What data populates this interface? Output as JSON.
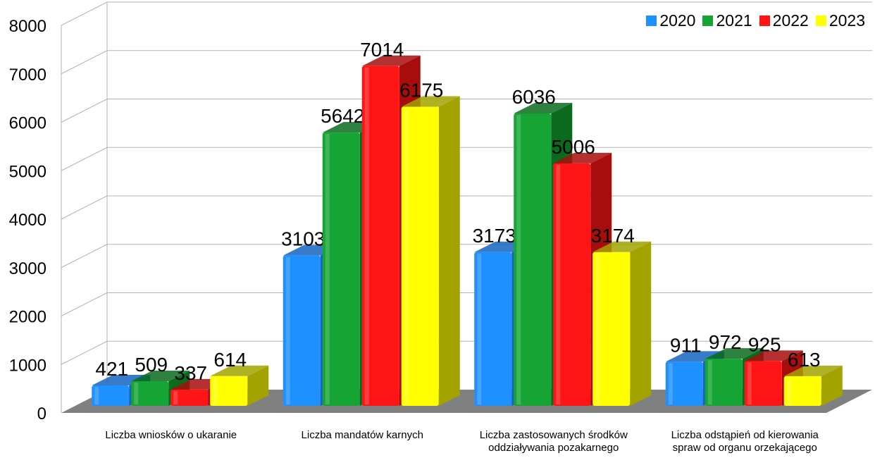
{
  "chart_data": {
    "type": "bar",
    "categories": [
      [
        "Liczba wniosków o ukaranie"
      ],
      [
        "Liczba mandatów karnych"
      ],
      [
        "Liczba zastosowanych środków",
        "oddziaływania pozakarnego"
      ],
      [
        "Liczba odstąpień od kierowania",
        "spraw od organu orzekającego"
      ]
    ],
    "series": [
      {
        "name": "2020",
        "values": [
          421,
          3103,
          3173,
          911
        ],
        "color": "#1e90ff",
        "shade": "#1565c0"
      },
      {
        "name": "2021",
        "values": [
          509,
          5642,
          6036,
          972
        ],
        "color": "#16a534",
        "shade": "#0a6b1e"
      },
      {
        "name": "2022",
        "values": [
          337,
          7014,
          5006,
          925
        ],
        "color": "#ff1515",
        "shade": "#a80d0d"
      },
      {
        "name": "2023",
        "values": [
          614,
          6175,
          3174,
          613
        ],
        "color": "#ffff00",
        "shade": "#a3a300"
      }
    ],
    "yticks": [
      0,
      1000,
      2000,
      3000,
      4000,
      5000,
      6000,
      7000,
      8000
    ],
    "ylim": [
      0,
      8000
    ],
    "grid": true,
    "legend_position": "top-right",
    "three_d": true
  }
}
